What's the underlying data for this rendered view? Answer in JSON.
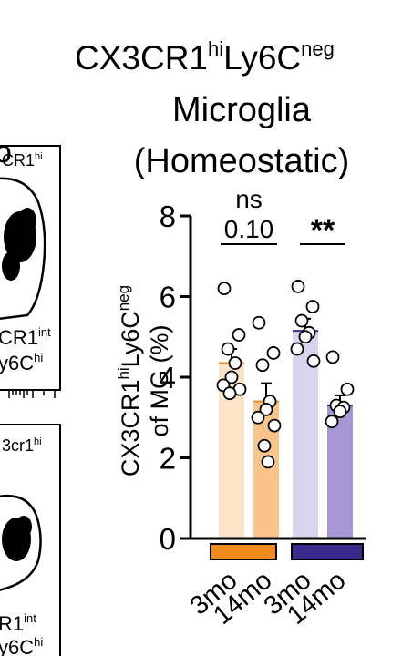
{
  "title": {
    "line1_main": "CX3CR1",
    "line1_sup1": "hi",
    "line1_mid": "Ly6C",
    "line1_sup2": "neg",
    "line2": "Microglia",
    "line3": "(Homeostatic)"
  },
  "left_panels": {
    "top": {
      "gate_top": "CR1",
      "gate_top_sup": "hi",
      "gate_bottom1": "CR1",
      "gate_bottom1_sup": "int",
      "gate_bottom2": "y6C",
      "gate_bottom2_sup": "hi"
    },
    "bottom": {
      "gate_top": "3cr1",
      "gate_top_sup": "hi",
      "gate_bottom1": "R1",
      "gate_bottom1_sup": "int",
      "gate_bottom2": "y6C",
      "gate_bottom2_sup": "hi"
    },
    "panel_letter_fragment": "o"
  },
  "colors": {
    "bar_3mo_1": "#fbe3c7",
    "bar_14mo_1": "#f9c489",
    "bar_3mo_2": "#d9d4ee",
    "bar_14mo_2": "#a596d4",
    "group1": "#f08c1e",
    "group2": "#3a2a8e"
  },
  "chart_data": {
    "type": "bar",
    "ylabel_parts": [
      "CX3CR1",
      "hi",
      "Ly6C",
      "neg",
      "of MG (%)"
    ],
    "ylim": [
      0,
      8
    ],
    "yticks": [
      "0",
      "2",
      "4",
      "6",
      "8"
    ],
    "categories": [
      "3mo",
      "14mo",
      "3mo",
      "14mo"
    ],
    "values": [
      4.35,
      3.4,
      5.15,
      3.3
    ],
    "sem": [
      0.35,
      0.45,
      0.3,
      0.25
    ],
    "points": [
      [
        6.2,
        5.05,
        4.7,
        4.35,
        4.0,
        3.8,
        3.7,
        3.6
      ],
      [
        5.35,
        4.6,
        4.3,
        3.4,
        3.2,
        3.0,
        2.8,
        2.3,
        1.9
      ],
      [
        6.25,
        5.75,
        5.4,
        5.1,
        5.0,
        4.7,
        4.4
      ],
      [
        4.5,
        3.7,
        3.3,
        3.25,
        3.15,
        2.9
      ]
    ],
    "group_colors": [
      "#f08c1e",
      "#f08c1e",
      "#3a2a8e",
      "#3a2a8e"
    ],
    "annotations": [
      {
        "text": "ns",
        "pair": [
          0,
          1
        ]
      },
      {
        "text": "0.10",
        "pair": [
          0,
          1
        ]
      },
      {
        "text": "**",
        "pair": [
          2,
          3
        ]
      }
    ]
  }
}
